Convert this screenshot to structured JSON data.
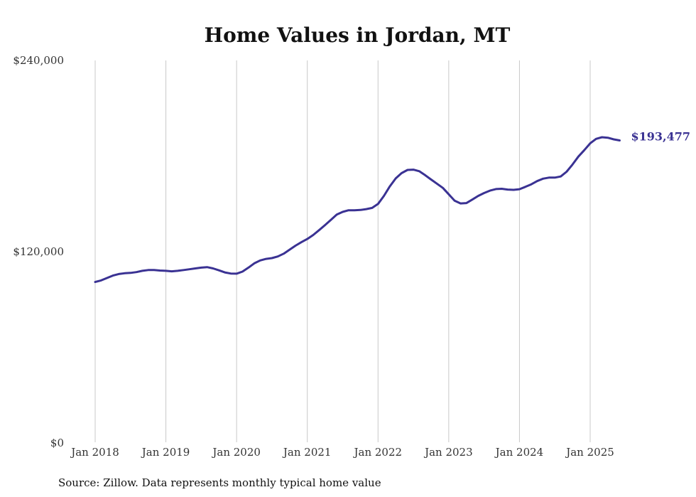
{
  "chart_data": {
    "type": "line",
    "title": "Home Values in Jordan, MT",
    "xlabel": "",
    "ylabel": "",
    "ylim": [
      0,
      240000
    ],
    "yticks": [
      {
        "value": 0,
        "label": "$0"
      },
      {
        "value": 120000,
        "label": "$120,000"
      },
      {
        "value": 240000,
        "label": "$240,000"
      }
    ],
    "xticks": [
      {
        "value": 2018,
        "label": "Jan 2018"
      },
      {
        "value": 2019,
        "label": "Jan 2019"
      },
      {
        "value": 2020,
        "label": "Jan 2020"
      },
      {
        "value": 2021,
        "label": "Jan 2021"
      },
      {
        "value": 2022,
        "label": "Jan 2022"
      },
      {
        "value": 2023,
        "label": "Jan 2023"
      },
      {
        "value": 2024,
        "label": "Jan 2024"
      },
      {
        "value": 2025,
        "label": "Jan 2025"
      }
    ],
    "grid": {
      "vertical": true,
      "horizontal": false
    },
    "series": [
      {
        "color": "#3a3293",
        "end_label": "$193,477",
        "points": [
          [
            2018.0,
            101000
          ],
          [
            2018.083,
            102000
          ],
          [
            2018.167,
            103500
          ],
          [
            2018.25,
            105000
          ],
          [
            2018.333,
            106000
          ],
          [
            2018.417,
            106500
          ],
          [
            2018.5,
            106700
          ],
          [
            2018.583,
            107200
          ],
          [
            2018.667,
            108000
          ],
          [
            2018.75,
            108500
          ],
          [
            2018.833,
            108500
          ],
          [
            2018.917,
            108200
          ],
          [
            2019.0,
            108000
          ],
          [
            2019.083,
            107700
          ],
          [
            2019.167,
            108000
          ],
          [
            2019.25,
            108500
          ],
          [
            2019.333,
            109000
          ],
          [
            2019.417,
            109500
          ],
          [
            2019.5,
            110000
          ],
          [
            2019.583,
            110300
          ],
          [
            2019.667,
            109500
          ],
          [
            2019.75,
            108300
          ],
          [
            2019.833,
            107000
          ],
          [
            2019.917,
            106300
          ],
          [
            2020.0,
            106200
          ],
          [
            2020.083,
            107500
          ],
          [
            2020.167,
            110000
          ],
          [
            2020.25,
            112700
          ],
          [
            2020.333,
            114500
          ],
          [
            2020.417,
            115500
          ],
          [
            2020.5,
            116000
          ],
          [
            2020.583,
            117000
          ],
          [
            2020.667,
            118800
          ],
          [
            2020.75,
            121300
          ],
          [
            2020.833,
            123800
          ],
          [
            2020.917,
            126000
          ],
          [
            2021.0,
            128000
          ],
          [
            2021.083,
            130500
          ],
          [
            2021.167,
            133500
          ],
          [
            2021.25,
            136700
          ],
          [
            2021.333,
            140000
          ],
          [
            2021.417,
            143300
          ],
          [
            2021.5,
            145000
          ],
          [
            2021.583,
            146000
          ],
          [
            2021.667,
            146000
          ],
          [
            2021.75,
            146200
          ],
          [
            2021.833,
            146700
          ],
          [
            2021.917,
            147500
          ],
          [
            2022.0,
            150000
          ],
          [
            2022.083,
            155000
          ],
          [
            2022.167,
            161000
          ],
          [
            2022.25,
            166000
          ],
          [
            2022.333,
            169300
          ],
          [
            2022.417,
            171300
          ],
          [
            2022.5,
            171500
          ],
          [
            2022.583,
            170500
          ],
          [
            2022.667,
            168000
          ],
          [
            2022.75,
            165300
          ],
          [
            2022.833,
            162700
          ],
          [
            2022.917,
            160000
          ],
          [
            2023.0,
            156000
          ],
          [
            2023.083,
            152000
          ],
          [
            2023.167,
            150300
          ],
          [
            2023.25,
            150500
          ],
          [
            2023.333,
            152700
          ],
          [
            2023.417,
            155000
          ],
          [
            2023.5,
            156800
          ],
          [
            2023.583,
            158300
          ],
          [
            2023.667,
            159300
          ],
          [
            2023.75,
            159500
          ],
          [
            2023.833,
            159000
          ],
          [
            2023.917,
            158800
          ],
          [
            2024.0,
            159200
          ],
          [
            2024.083,
            160700
          ],
          [
            2024.167,
            162300
          ],
          [
            2024.25,
            164300
          ],
          [
            2024.333,
            165800
          ],
          [
            2024.417,
            166500
          ],
          [
            2024.5,
            166500
          ],
          [
            2024.583,
            167200
          ],
          [
            2024.667,
            170200
          ],
          [
            2024.75,
            174700
          ],
          [
            2024.833,
            179700
          ],
          [
            2024.917,
            183700
          ],
          [
            2025.0,
            188000
          ],
          [
            2025.083,
            190800
          ],
          [
            2025.167,
            191800
          ],
          [
            2025.25,
            191500
          ],
          [
            2025.333,
            190500
          ],
          [
            2025.417,
            189800
          ]
        ]
      }
    ]
  },
  "footer": {
    "source": "Source: Zillow. Data represents monthly typical home value"
  }
}
